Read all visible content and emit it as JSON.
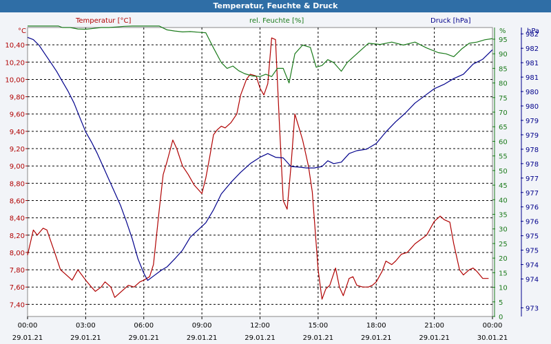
{
  "chart_data": {
    "type": "line",
    "title": "Temperatur, Feuchte & Druck",
    "grid": true,
    "axis_labels": {
      "temp": "Temperatur [°C]",
      "humidity": "rel. Feuchte [%]",
      "pressure": "Druck [hPa]",
      "temp_unit": "°C",
      "humidity_unit": "%",
      "pressure_unit": "hPa"
    },
    "x_ticks": [
      {
        "time": "00:00",
        "date": "29.01.21"
      },
      {
        "time": "03:00",
        "date": "29.01.21"
      },
      {
        "time": "06:00",
        "date": "29.01.21"
      },
      {
        "time": "09:00",
        "date": "29.01.21"
      },
      {
        "time": "12:00",
        "date": "29.01.21"
      },
      {
        "time": "15:00",
        "date": "29.01.21"
      },
      {
        "time": "18:00",
        "date": "29.01.21"
      },
      {
        "time": "21:00",
        "date": "29.01.21"
      },
      {
        "time": "00:00",
        "date": "30.01.21"
      }
    ],
    "x_range_hours": [
      0,
      24
    ],
    "temp_axis": {
      "range": [
        7.26,
        10.6
      ],
      "ticks": [
        "10,40",
        "10,20",
        "10,00",
        "9,80",
        "9,60",
        "9,40",
        "9,20",
        "9,00",
        "8,80",
        "8,60",
        "8,40",
        "8,20",
        "8,00",
        "7,80",
        "7,60",
        "7,40"
      ],
      "tick_values": [
        10.4,
        10.2,
        10.0,
        9.8,
        9.6,
        9.4,
        9.2,
        9.0,
        8.8,
        8.6,
        8.4,
        8.2,
        8.0,
        7.8,
        7.6,
        7.4
      ]
    },
    "humidity_axis": {
      "range": [
        0,
        99
      ],
      "ticks": [
        "95",
        "90",
        "85",
        "80",
        "75",
        "70",
        "65",
        "60",
        "55",
        "50",
        "45",
        "40",
        "35",
        "30",
        "25",
        "20",
        "15",
        "10",
        "5",
        "0"
      ],
      "tick_values": [
        95,
        90,
        85,
        80,
        75,
        70,
        65,
        60,
        55,
        50,
        45,
        40,
        35,
        30,
        25,
        20,
        15,
        10,
        5,
        0
      ]
    },
    "pressure_axis": {
      "range": [
        972.7,
        982.72
      ],
      "ticks": [
        "982",
        "982",
        "981",
        "981",
        "980",
        "980",
        "979",
        "979",
        "978",
        "978",
        "977",
        "977",
        "976",
        "976",
        "975",
        "975",
        "974",
        "974",
        "973"
      ],
      "tick_values": [
        982.5,
        982,
        981.5,
        981,
        980.5,
        980,
        979.5,
        979,
        978.5,
        978,
        977.5,
        977,
        976.5,
        976,
        975.5,
        975,
        974.5,
        974,
        973
      ]
    },
    "series": [
      {
        "name": "Temperatur [°C]",
        "color": "#b00000",
        "axis": "temp",
        "points": [
          [
            0,
            7.97
          ],
          [
            0.3,
            8.26
          ],
          [
            0.5,
            8.2
          ],
          [
            0.8,
            8.28
          ],
          [
            1.0,
            8.26
          ],
          [
            1.4,
            8.0
          ],
          [
            1.7,
            7.8
          ],
          [
            2.0,
            7.74
          ],
          [
            2.3,
            7.68
          ],
          [
            2.6,
            7.8
          ],
          [
            3.0,
            7.68
          ],
          [
            3.3,
            7.6
          ],
          [
            3.5,
            7.55
          ],
          [
            3.8,
            7.6
          ],
          [
            4.0,
            7.66
          ],
          [
            4.3,
            7.6
          ],
          [
            4.5,
            7.48
          ],
          [
            4.8,
            7.54
          ],
          [
            5.2,
            7.62
          ],
          [
            5.5,
            7.6
          ],
          [
            5.8,
            7.66
          ],
          [
            6.0,
            7.68
          ],
          [
            6.3,
            7.72
          ],
          [
            6.5,
            7.86
          ],
          [
            6.8,
            8.5
          ],
          [
            7.0,
            8.9
          ],
          [
            7.2,
            9.05
          ],
          [
            7.5,
            9.3
          ],
          [
            7.7,
            9.2
          ],
          [
            8.0,
            9.0
          ],
          [
            8.3,
            8.9
          ],
          [
            8.6,
            8.78
          ],
          [
            9.0,
            8.68
          ],
          [
            9.2,
            8.86
          ],
          [
            9.4,
            9.1
          ],
          [
            9.6,
            9.36
          ],
          [
            9.8,
            9.42
          ],
          [
            10.0,
            9.46
          ],
          [
            10.2,
            9.44
          ],
          [
            10.5,
            9.5
          ],
          [
            10.8,
            9.6
          ],
          [
            11.0,
            9.82
          ],
          [
            11.3,
            10.0
          ],
          [
            11.5,
            10.06
          ],
          [
            11.8,
            10.04
          ],
          [
            12.0,
            9.9
          ],
          [
            12.2,
            9.82
          ],
          [
            12.4,
            9.95
          ],
          [
            12.6,
            10.48
          ],
          [
            12.8,
            10.46
          ],
          [
            13.0,
            9.5
          ],
          [
            13.2,
            8.6
          ],
          [
            13.4,
            8.5
          ],
          [
            13.6,
            9.0
          ],
          [
            13.8,
            9.6
          ],
          [
            14.0,
            9.45
          ],
          [
            14.2,
            9.3
          ],
          [
            14.5,
            9.0
          ],
          [
            14.7,
            8.7
          ],
          [
            15.0,
            7.8
          ],
          [
            15.2,
            7.46
          ],
          [
            15.4,
            7.58
          ],
          [
            15.6,
            7.62
          ],
          [
            15.9,
            7.82
          ],
          [
            16.1,
            7.6
          ],
          [
            16.3,
            7.5
          ],
          [
            16.6,
            7.7
          ],
          [
            16.8,
            7.72
          ],
          [
            17.0,
            7.62
          ],
          [
            17.3,
            7.6
          ],
          [
            17.6,
            7.6
          ],
          [
            17.8,
            7.62
          ],
          [
            18.0,
            7.66
          ],
          [
            18.3,
            7.78
          ],
          [
            18.5,
            7.9
          ],
          [
            18.8,
            7.86
          ],
          [
            19.0,
            7.9
          ],
          [
            19.3,
            7.98
          ],
          [
            19.6,
            8.0
          ],
          [
            19.8,
            8.05
          ],
          [
            20.0,
            8.1
          ],
          [
            20.3,
            8.15
          ],
          [
            20.6,
            8.2
          ],
          [
            21.0,
            8.36
          ],
          [
            21.3,
            8.42
          ],
          [
            21.5,
            8.38
          ],
          [
            21.8,
            8.35
          ],
          [
            22.0,
            8.1
          ],
          [
            22.3,
            7.8
          ],
          [
            22.5,
            7.74
          ],
          [
            22.8,
            7.8
          ],
          [
            23.0,
            7.82
          ],
          [
            23.2,
            7.78
          ],
          [
            23.5,
            7.7
          ],
          [
            23.8,
            7.7
          ]
        ]
      },
      {
        "name": "rel. Feuchte [%]",
        "color": "#1a7a1a",
        "axis": "humidity",
        "points": [
          [
            0,
            99.5
          ],
          [
            1.6,
            99.5
          ],
          [
            1.8,
            99
          ],
          [
            2.2,
            99
          ],
          [
            2.6,
            98.5
          ],
          [
            3.0,
            98.4
          ],
          [
            3.4,
            98.7
          ],
          [
            3.8,
            99
          ],
          [
            4.2,
            99
          ],
          [
            4.6,
            99.2
          ],
          [
            5.0,
            99.4
          ],
          [
            5.4,
            99.5
          ],
          [
            6.8,
            99.5
          ],
          [
            7.2,
            98.2
          ],
          [
            7.6,
            97.8
          ],
          [
            8.0,
            97.5
          ],
          [
            8.4,
            97.6
          ],
          [
            8.8,
            97.4
          ],
          [
            9.2,
            97.2
          ],
          [
            9.6,
            92
          ],
          [
            10.0,
            87
          ],
          [
            10.3,
            85
          ],
          [
            10.6,
            85.8
          ],
          [
            10.9,
            84.2
          ],
          [
            11.2,
            83.2
          ],
          [
            11.6,
            82.4
          ],
          [
            12.0,
            82.2
          ],
          [
            12.3,
            83
          ],
          [
            12.6,
            82.2
          ],
          [
            12.9,
            85
          ],
          [
            13.2,
            85
          ],
          [
            13.5,
            80
          ],
          [
            13.8,
            90
          ],
          [
            14.2,
            93
          ],
          [
            14.6,
            92.2
          ],
          [
            14.9,
            85.4
          ],
          [
            15.2,
            86
          ],
          [
            15.5,
            88
          ],
          [
            15.8,
            87
          ],
          [
            16.2,
            84
          ],
          [
            16.5,
            87
          ],
          [
            17.0,
            90
          ],
          [
            17.6,
            93.6
          ],
          [
            18.2,
            93.2
          ],
          [
            18.8,
            94
          ],
          [
            19.4,
            93
          ],
          [
            20.0,
            94
          ],
          [
            20.6,
            92
          ],
          [
            21.2,
            90.4
          ],
          [
            21.6,
            90
          ],
          [
            22.0,
            89
          ],
          [
            22.4,
            91.6
          ],
          [
            22.8,
            93.6
          ],
          [
            23.2,
            94
          ],
          [
            23.6,
            94.8
          ],
          [
            24.0,
            95.2
          ]
        ]
      },
      {
        "name": "Druck [hPa]",
        "color": "#00008b",
        "axis": "pressure",
        "points": [
          [
            0,
            982.38
          ],
          [
            0.3,
            982.3
          ],
          [
            0.6,
            982.1
          ],
          [
            0.9,
            981.8
          ],
          [
            1.2,
            981.5
          ],
          [
            1.5,
            981.2
          ],
          [
            1.8,
            980.85
          ],
          [
            2.1,
            980.5
          ],
          [
            2.4,
            980.1
          ],
          [
            2.7,
            979.6
          ],
          [
            3.0,
            979.1
          ],
          [
            3.3,
            978.75
          ],
          [
            3.6,
            978.35
          ],
          [
            3.9,
            977.9
          ],
          [
            4.2,
            977.45
          ],
          [
            4.5,
            977.0
          ],
          [
            4.8,
            976.55
          ],
          [
            5.1,
            976.0
          ],
          [
            5.4,
            975.4
          ],
          [
            5.7,
            974.7
          ],
          [
            6.0,
            974.2
          ],
          [
            6.2,
            973.95
          ],
          [
            6.5,
            974.1
          ],
          [
            6.9,
            974.3
          ],
          [
            7.2,
            974.42
          ],
          [
            7.6,
            974.7
          ],
          [
            8.0,
            975.0
          ],
          [
            8.4,
            975.45
          ],
          [
            8.8,
            975.7
          ],
          [
            9.2,
            975.95
          ],
          [
            9.6,
            976.4
          ],
          [
            10.0,
            976.95
          ],
          [
            10.5,
            977.35
          ],
          [
            11.0,
            977.7
          ],
          [
            11.5,
            978.0
          ],
          [
            12.0,
            978.22
          ],
          [
            12.4,
            978.35
          ],
          [
            12.8,
            978.22
          ],
          [
            13.2,
            978.2
          ],
          [
            13.6,
            977.9
          ],
          [
            14.0,
            977.88
          ],
          [
            14.4,
            977.85
          ],
          [
            14.8,
            977.85
          ],
          [
            15.2,
            977.9
          ],
          [
            15.5,
            978.1
          ],
          [
            15.8,
            978.0
          ],
          [
            16.2,
            978.05
          ],
          [
            16.6,
            978.35
          ],
          [
            17.0,
            978.45
          ],
          [
            17.5,
            978.5
          ],
          [
            18.0,
            978.7
          ],
          [
            18.5,
            979.1
          ],
          [
            19.0,
            979.45
          ],
          [
            19.5,
            979.75
          ],
          [
            20.0,
            980.1
          ],
          [
            20.5,
            980.35
          ],
          [
            21.0,
            980.6
          ],
          [
            21.5,
            980.75
          ],
          [
            22.0,
            980.95
          ],
          [
            22.5,
            981.1
          ],
          [
            23.0,
            981.45
          ],
          [
            23.5,
            981.62
          ],
          [
            24.0,
            981.95
          ]
        ]
      }
    ]
  }
}
